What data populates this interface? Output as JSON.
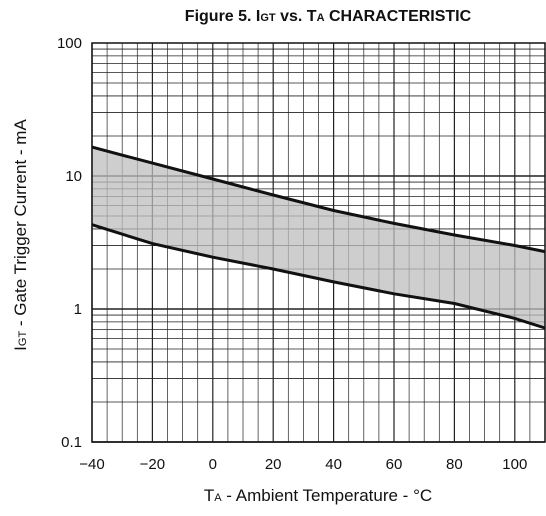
{
  "chart_data": {
    "type": "area",
    "title_prefix": "Figure 5.  I",
    "title_sub1": "GT",
    "title_mid": " vs. T",
    "title_sub2": "A",
    "title_suffix": " CHARACTERISTIC",
    "xlabel_prefix": "T",
    "xlabel_sub": "A",
    "xlabel_suffix": " - Ambient Temperature - °C",
    "ylabel_prefix": "I",
    "ylabel_sub": "GT",
    "ylabel_suffix": " - Gate Trigger Current - mA",
    "x_ticks": [
      "−40",
      "−20",
      "0",
      "20",
      "40",
      "60",
      "80",
      "100"
    ],
    "y_ticks": [
      "0.1",
      "1",
      "10",
      "100"
    ],
    "xlim": [
      -40,
      110
    ],
    "ylim": [
      0.1,
      100
    ],
    "y_scale": "log",
    "grid": true,
    "x": [
      -40,
      -20,
      0,
      20,
      40,
      60,
      80,
      100,
      110
    ],
    "series": [
      {
        "values": [
          16.5,
          12.5,
          9.5,
          7.2,
          5.5,
          4.4,
          3.6,
          3.0,
          2.7
        ]
      },
      {
        "values": [
          4.3,
          3.1,
          2.45,
          2.0,
          1.6,
          1.3,
          1.1,
          0.85,
          0.72
        ]
      }
    ],
    "band_fill": "#bdbdbd",
    "line_color": "#111111"
  }
}
